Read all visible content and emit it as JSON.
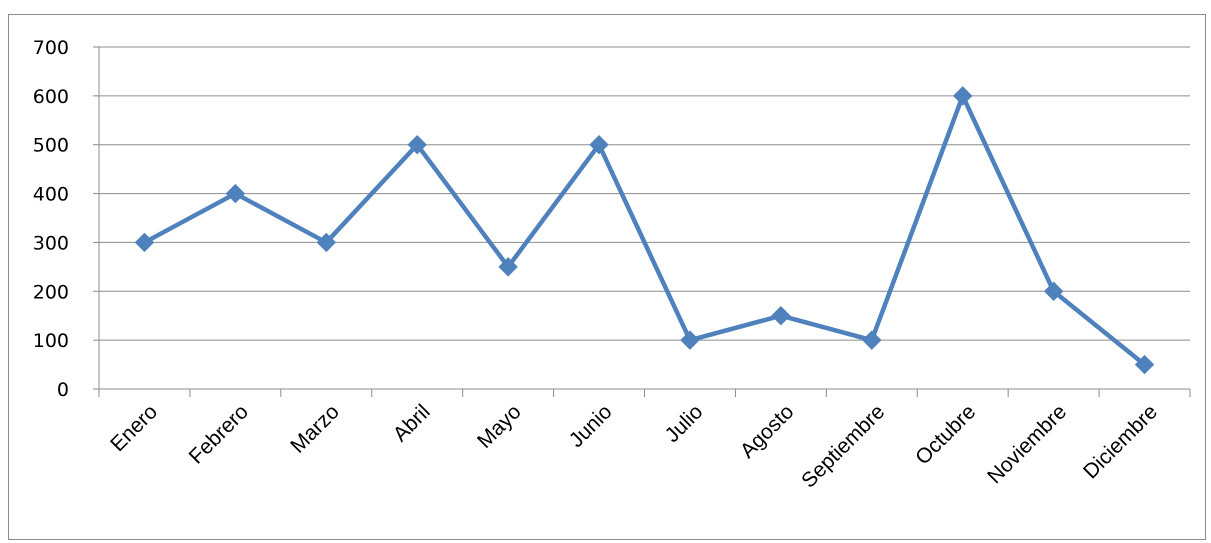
{
  "chart_data": {
    "type": "line",
    "categories": [
      "Enero",
      "Febrero",
      "Marzo",
      "Abril",
      "Mayo",
      "Junio",
      "Julio",
      "Agosto",
      "Septiembre",
      "Octubre",
      "Noviembre",
      "Diciembre"
    ],
    "series": [
      {
        "values": [
          300,
          400,
          300,
          500,
          250,
          500,
          100,
          150,
          100,
          600,
          200,
          50
        ]
      }
    ],
    "ylim": [
      0,
      700
    ],
    "yticks": [
      0,
      100,
      200,
      300,
      400,
      500,
      600,
      700
    ],
    "grid": true,
    "legend": "none",
    "marker": "diamond",
    "color": "#4f81bd",
    "gridline_color": "#8c8c8c"
  }
}
